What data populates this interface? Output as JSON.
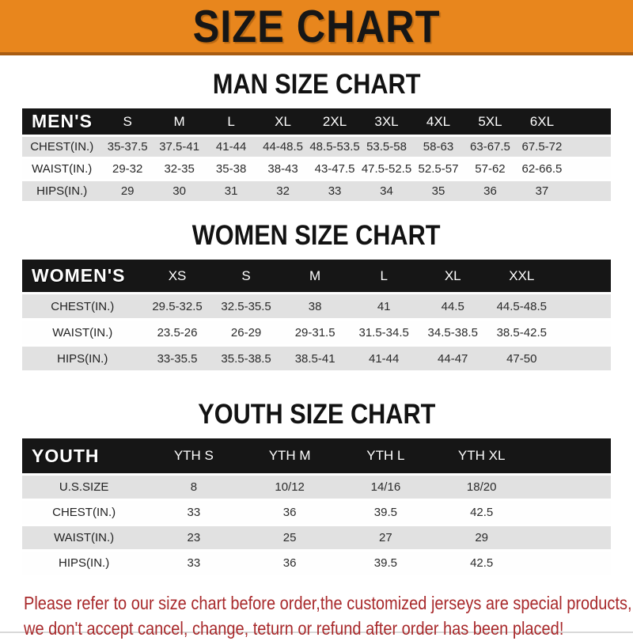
{
  "banner": {
    "title": "SIZE CHART"
  },
  "sections": [
    {
      "heading": "MAN SIZE CHART",
      "table": {
        "header_label": "MEN'S",
        "columns": [
          "S",
          "M",
          "L",
          "XL",
          "2XL",
          "3XL",
          "4XL",
          "5XL",
          "6XL"
        ],
        "rows": [
          {
            "label": "CHEST(IN.)",
            "values": [
              "35-37.5",
              "37.5-41",
              "41-44",
              "44-48.5",
              "48.5-53.5",
              "53.5-58",
              "58-63",
              "63-67.5",
              "67.5-72"
            ]
          },
          {
            "label": "WAIST(IN.)",
            "values": [
              "29-32",
              "32-35",
              "35-38",
              "38-43",
              "43-47.5",
              "47.5-52.5",
              "52.5-57",
              "57-62",
              "62-66.5"
            ]
          },
          {
            "label": "HIPS(IN.)",
            "values": [
              "29",
              "30",
              "31",
              "32",
              "33",
              "34",
              "35",
              "36",
              "37"
            ]
          }
        ]
      }
    },
    {
      "heading": "WOMEN SIZE CHART",
      "table": {
        "header_label": "WOMEN'S",
        "columns": [
          "XS",
          "S",
          "M",
          "L",
          "XL",
          "XXL"
        ],
        "rows": [
          {
            "label": "CHEST(IN.)",
            "values": [
              "29.5-32.5",
              "32.5-35.5",
              "38",
              "41",
              "44.5",
              "44.5-48.5"
            ]
          },
          {
            "label": "WAIST(IN.)",
            "values": [
              "23.5-26",
              "26-29",
              "29-31.5",
              "31.5-34.5",
              "34.5-38.5",
              "38.5-42.5"
            ]
          },
          {
            "label": "HIPS(IN.)",
            "values": [
              "33-35.5",
              "35.5-38.5",
              "38.5-41",
              "41-44",
              "44-47",
              "47-50"
            ]
          }
        ]
      }
    },
    {
      "heading": "YOUTH SIZE CHART",
      "table": {
        "header_label": "YOUTH",
        "columns": [
          "YTH S",
          "YTH M",
          "YTH L",
          "YTH XL"
        ],
        "rows": [
          {
            "label": "U.S.SIZE",
            "values": [
              "8",
              "10/12",
              "14/16",
              "18/20"
            ]
          },
          {
            "label": "CHEST(IN.)",
            "values": [
              "33",
              "36",
              "39.5",
              "42.5"
            ]
          },
          {
            "label": "WAIST(IN.)",
            "values": [
              "23",
              "25",
              "27",
              "29"
            ]
          },
          {
            "label": "HIPS(IN.)",
            "values": [
              "33",
              "36",
              "39.5",
              "42.5"
            ]
          }
        ]
      }
    }
  ],
  "footer": {
    "line1": "Please refer to our size chart before order,the customized jerseys are special products,",
    "line2": "we don't accept cancel, change, teturn or refund after order has been placed!"
  },
  "colors": {
    "banner_orange": "#E8861D",
    "banner_border": "#A85C12",
    "banner_text": "#161616",
    "table_header_black": "#161616",
    "table_header_text": "#FFFFFF",
    "row_gray": "#E1E1E1",
    "row_white": "#FEFEFE",
    "body_text": "#2B2B2B",
    "footer_red": "#A8292B"
  }
}
